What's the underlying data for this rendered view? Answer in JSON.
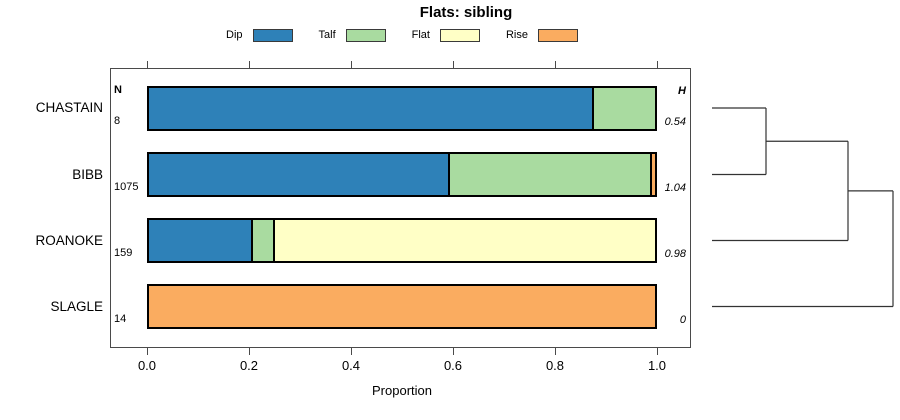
{
  "title": "Flats: sibling",
  "legend": [
    {
      "label": "Dip",
      "color": "#2E81B8"
    },
    {
      "label": "Talf",
      "color": "#A9DBA0"
    },
    {
      "label": "Flat",
      "color": "#FFFFC6"
    },
    {
      "label": "Rise",
      "color": "#FAAC60"
    }
  ],
  "columns": {
    "n_header": "N",
    "h_header": "H"
  },
  "axis": {
    "ticks": [
      "0.0",
      "0.2",
      "0.4",
      "0.6",
      "0.8",
      "1.0"
    ],
    "xlabel": "Proportion"
  },
  "chart_data": {
    "type": "bar",
    "orientation": "horizontal-stacked",
    "title": "Flats: sibling",
    "xlabel": "Proportion",
    "xlim": [
      0,
      1
    ],
    "grid": false,
    "legend_position": "top",
    "categories": [
      "CHASTAIN",
      "BIBB",
      "ROANOKE",
      "SLAGLE"
    ],
    "N": [
      "8",
      "1075",
      "159",
      "14"
    ],
    "H": [
      "0.54",
      "1.04",
      "0.98",
      "0"
    ],
    "series": [
      {
        "name": "Dip",
        "color": "#2E81B8",
        "values": [
          0.875,
          0.59,
          0.2025,
          0
        ]
      },
      {
        "name": "Talf",
        "color": "#A9DBA0",
        "values": [
          0.125,
          0.4,
          0.043,
          0
        ]
      },
      {
        "name": "Flat",
        "color": "#FFFFC6",
        "values": [
          0,
          0,
          0.7545,
          0
        ]
      },
      {
        "name": "Rise",
        "color": "#FAAC60",
        "values": [
          0,
          0.01,
          0,
          1
        ]
      }
    ],
    "dendrogram": {
      "leaves_top_to_bottom": [
        "CHASTAIN",
        "BIBB",
        "ROANOKE",
        "SLAGLE"
      ],
      "structure": "(((CHASTAIN,BIBB),ROANOKE),SLAGLE)"
    }
  }
}
